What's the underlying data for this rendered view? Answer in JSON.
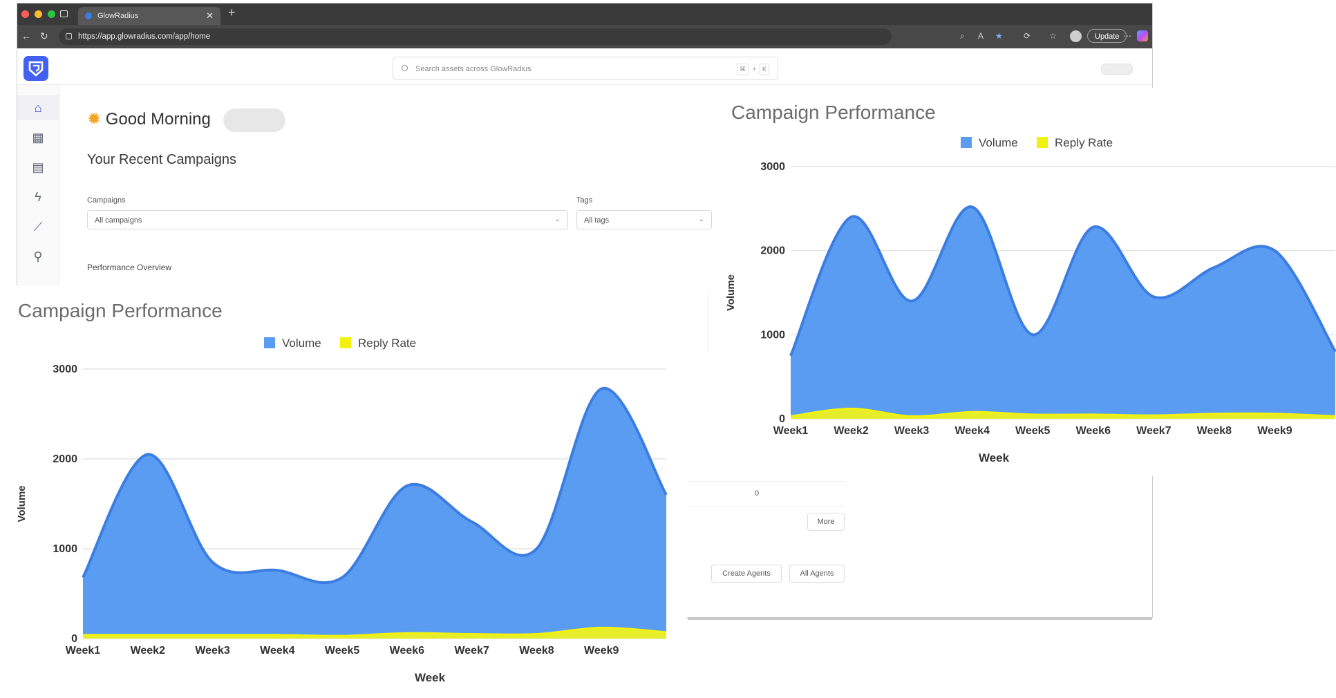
{
  "browser": {
    "tab_title": "GlowRadius",
    "url": "https://app.glowradius.com/app/home",
    "update_label": "Update"
  },
  "header": {
    "search_placeholder": "Search assets across GlowRadius",
    "shortcut_key_1": "⌘",
    "shortcut_plus": "+",
    "shortcut_key_2": "K"
  },
  "home": {
    "greeting": "Good Morning",
    "recent_title": "Your Recent Campaigns",
    "campaigns_label": "Campaigns",
    "campaigns_value": "All campaigns",
    "tags_label": "Tags",
    "tags_value": "All tags",
    "performance_overview": "Performance Overview",
    "count_value": "0",
    "more_label": "More",
    "create_agents_label": "Create Agents",
    "all_agents_label": "All Agents"
  },
  "sidebar": {
    "icons": [
      "home-icon",
      "table-icon",
      "document-icon",
      "bolt-icon",
      "analytics-icon",
      "integrations-icon"
    ]
  },
  "colors": {
    "accent": "#4460f1",
    "volume": "#5b9cf3",
    "volume_line": "#3b7de0",
    "reply_rate": "#f2f20f"
  },
  "chart_data": [
    {
      "type": "area",
      "title": "Campaign Performance",
      "categories": [
        "Week1",
        "Week2",
        "Week3",
        "Week4",
        "Week5",
        "Week6",
        "Week7",
        "Week8",
        "Week9",
        ""
      ],
      "series": [
        {
          "name": "Volume",
          "values": [
            750,
            2400,
            1400,
            2520,
            1000,
            2280,
            1450,
            1800,
            2000,
            800
          ]
        },
        {
          "name": "Reply Rate",
          "values": [
            30,
            120,
            30,
            80,
            50,
            50,
            40,
            60,
            60,
            30
          ]
        }
      ],
      "xlabel": "Week",
      "ylabel": "Volume",
      "yticks": [
        0,
        1000,
        2000,
        3000
      ],
      "ylim": [
        0,
        3000
      ],
      "legend": "top-center",
      "grid": true
    },
    {
      "type": "area",
      "title": "Campaign Performance",
      "categories": [
        "Week1",
        "Week2",
        "Week3",
        "Week4",
        "Week5",
        "Week6",
        "Week7",
        "Week8",
        "Week9",
        ""
      ],
      "series": [
        {
          "name": "Volume",
          "values": [
            680,
            2050,
            850,
            760,
            680,
            1700,
            1300,
            1000,
            2780,
            1600
          ]
        },
        {
          "name": "Reply Rate",
          "values": [
            40,
            40,
            40,
            40,
            30,
            60,
            50,
            50,
            120,
            70
          ]
        }
      ],
      "xlabel": "Week",
      "ylabel": "Volume",
      "yticks": [
        0,
        1000,
        2000,
        3000
      ],
      "ylim": [
        0,
        3000
      ],
      "legend": "top-center",
      "grid": true
    }
  ]
}
